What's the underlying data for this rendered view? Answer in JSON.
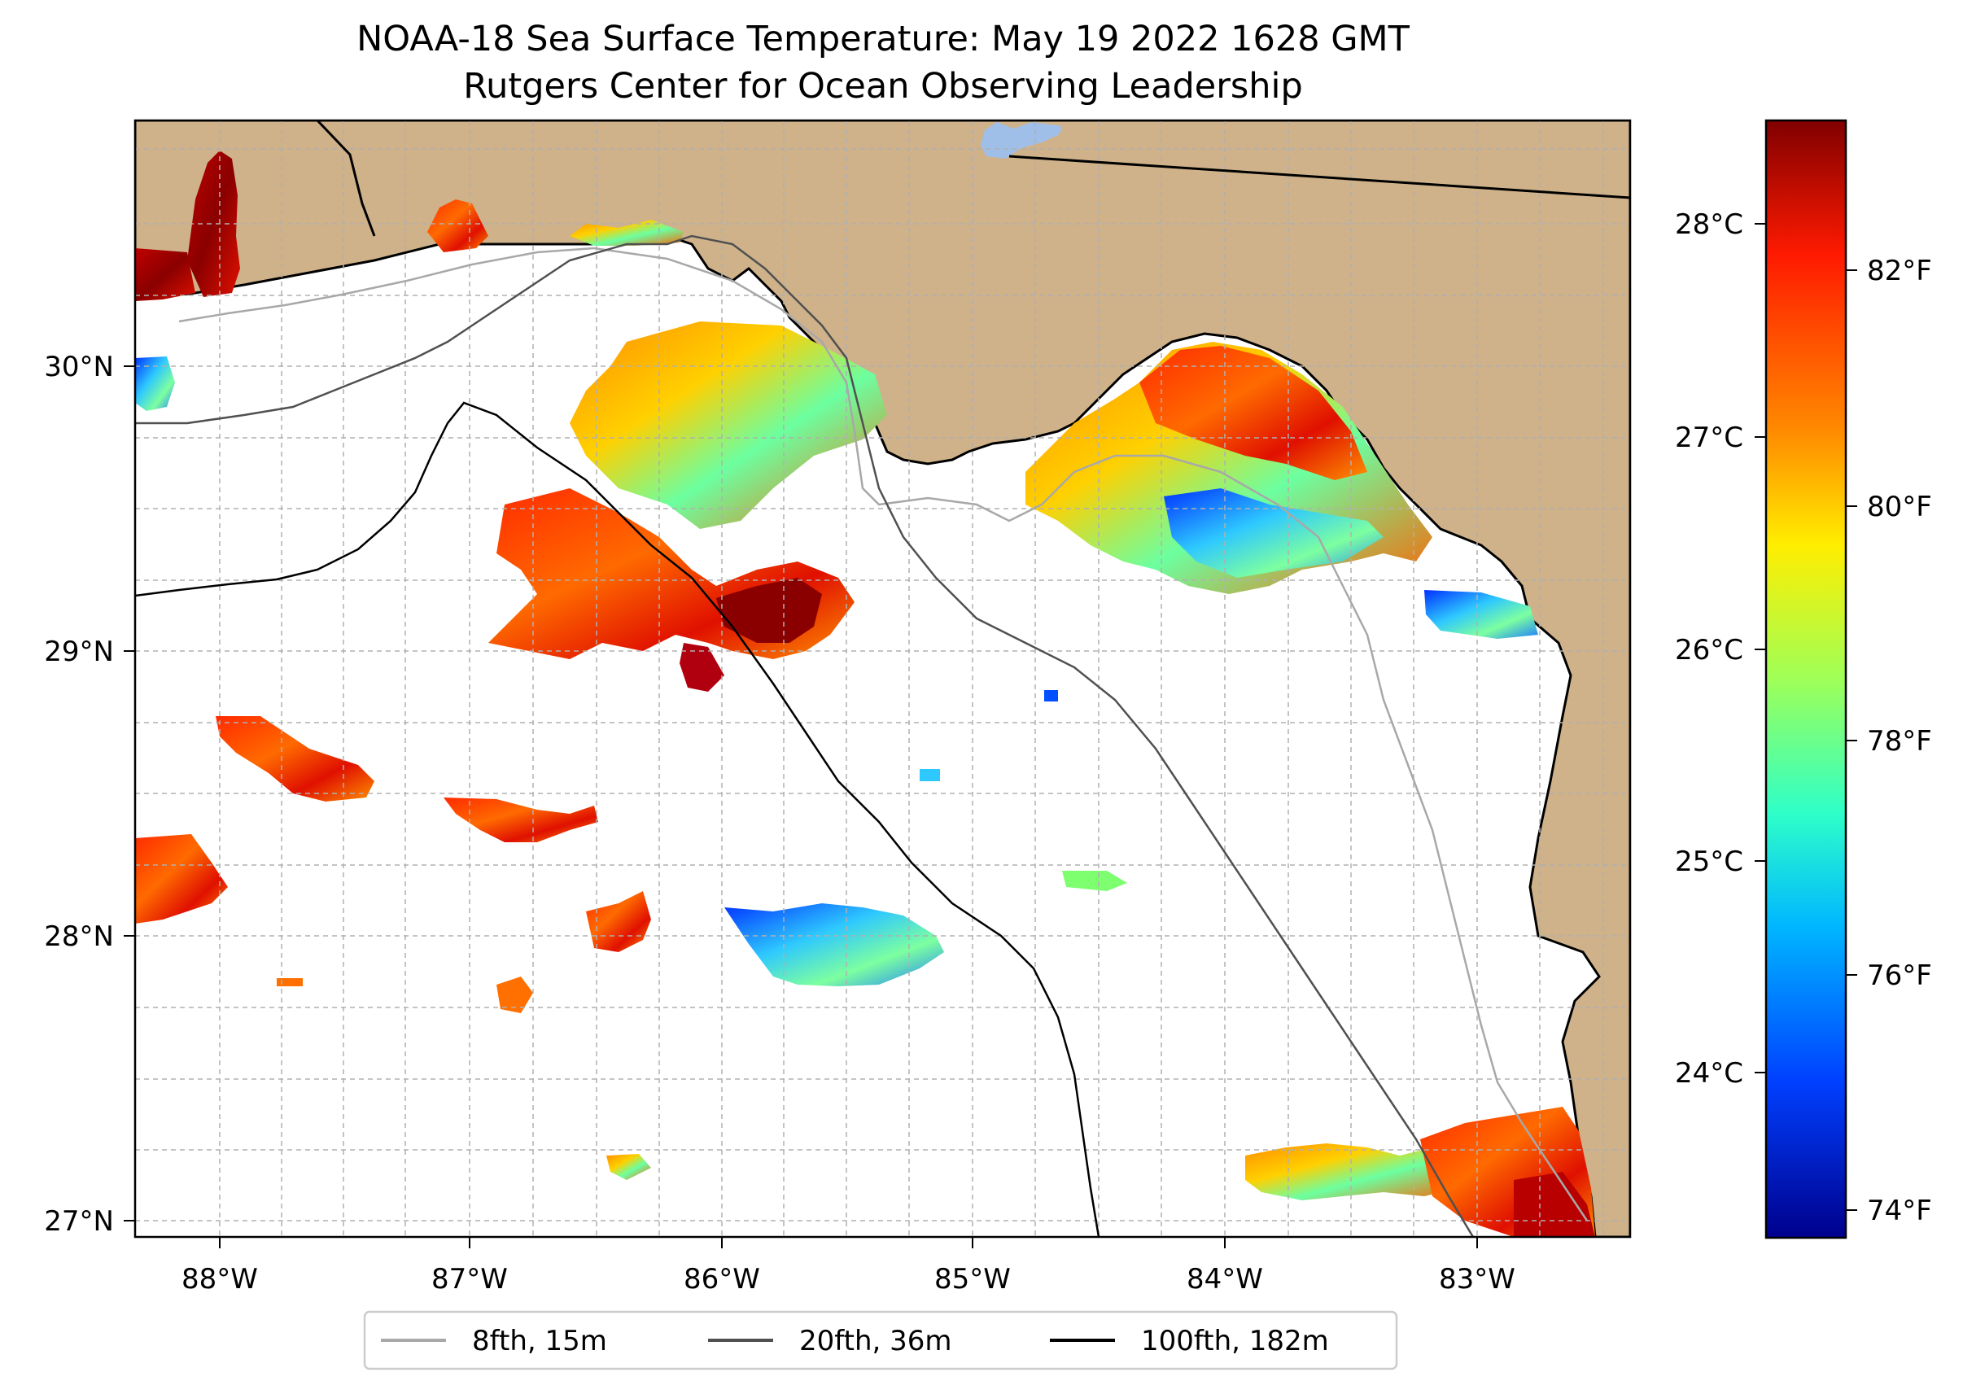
{
  "title": {
    "line1": "NOAA-18 Sea Surface Temperature: May 19 2022 1628 GMT",
    "line2": "Rutgers Center for Ocean Observing Leadership"
  },
  "map": {
    "lon_labels": [
      "88°W",
      "87°W",
      "86°W",
      "85°W",
      "84°W",
      "83°W"
    ],
    "lat_labels": [
      "30°N",
      "29°N",
      "28°N",
      "27°N"
    ],
    "colors": {
      "land": "#cfb28a",
      "water_no_data": "#ffffff",
      "lake": "#9fbfe8",
      "grid": "#b0b0b0"
    }
  },
  "colorbar": {
    "celsius_labels": [
      "28°C",
      "27°C",
      "26°C",
      "25°C",
      "24°C"
    ],
    "fahrenheit_labels": [
      "82°F",
      "80°F",
      "78°F",
      "76°F",
      "74°F"
    ],
    "colormap_stops": [
      "#800000",
      "#ff1a00",
      "#ff8c00",
      "#ffee00",
      "#9fff57",
      "#2effc8",
      "#00b8ff",
      "#0040ff",
      "#00008c"
    ]
  },
  "legend": {
    "items": [
      {
        "label": "8fth, 15m",
        "color": "#a8a8a8"
      },
      {
        "label": "20fth, 36m",
        "color": "#505050"
      },
      {
        "label": "100fth, 182m",
        "color": "#000000"
      }
    ]
  }
}
